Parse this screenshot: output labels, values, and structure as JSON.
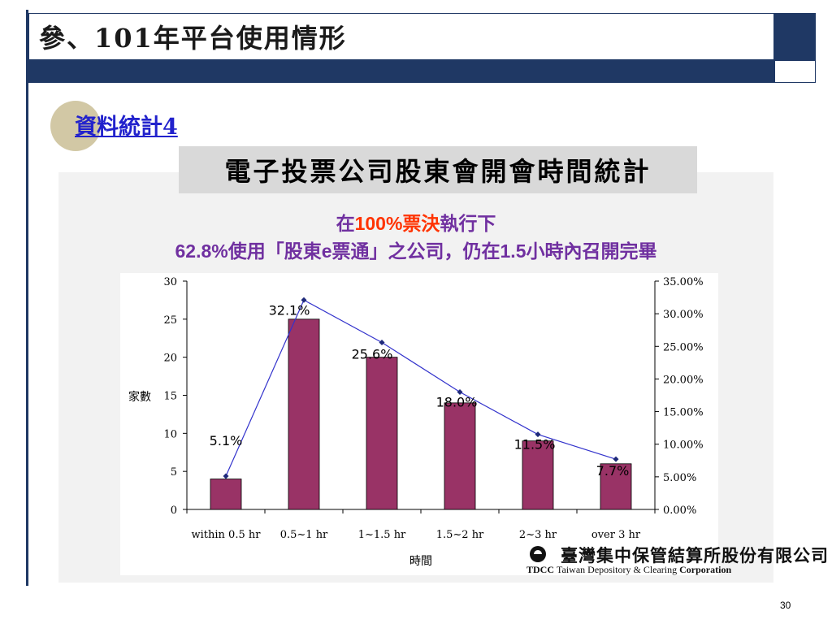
{
  "header": {
    "title": "參、101年平台使用情形"
  },
  "section": {
    "label": "資料統計4"
  },
  "chart_heading": "電子投票公司股東會開會時間統計",
  "subtitle": {
    "line1_pre": "在",
    "line1_highlight": "100%",
    "line1_orange": "票決",
    "line1_post": "執行下",
    "line2_pct": "62.8%",
    "line2_text1": "使用「股東",
    "line2_e": "e",
    "line2_text2": "票通」之公司，仍在",
    "line2_num": "1.5",
    "line2_text3": "小時內召開完畢"
  },
  "chart_data": {
    "type": "bar",
    "categories": [
      "within 0.5 hr",
      "0.5~1 hr",
      "1~1.5 hr",
      "1.5~2 hr",
      "2~3 hr",
      "over 3 hr"
    ],
    "series": [
      {
        "type": "bar",
        "axis": "left",
        "values": [
          4,
          25,
          20,
          14,
          9,
          6
        ],
        "color": "#993366"
      },
      {
        "type": "line",
        "axis": "right",
        "values": [
          5.1,
          32.1,
          25.6,
          18.0,
          11.5,
          7.7
        ],
        "labels": [
          "5.1%",
          "32.1%",
          "25.6%",
          "18.0%",
          "11.5%",
          "7.7%"
        ],
        "color": "#3333cc"
      }
    ],
    "xlabel": "時間",
    "ylabel": "家數",
    "ylim": [
      0,
      30
    ],
    "yticks": [
      "0",
      "5",
      "10",
      "15",
      "20",
      "25",
      "30"
    ],
    "y2lim": [
      0,
      35
    ],
    "y2ticks": [
      "0.00%",
      "5.00%",
      "10.00%",
      "15.00%",
      "20.00%",
      "25.00%",
      "30.00%",
      "35.00%"
    ],
    "grid": false
  },
  "logo": {
    "zh": "臺灣集中保管結算所股份有限公司",
    "abbr": "TDCC",
    "en_mid": "Taiwan Depository & Clearing",
    "en_bold": "Corporation"
  },
  "page_number": "30"
}
